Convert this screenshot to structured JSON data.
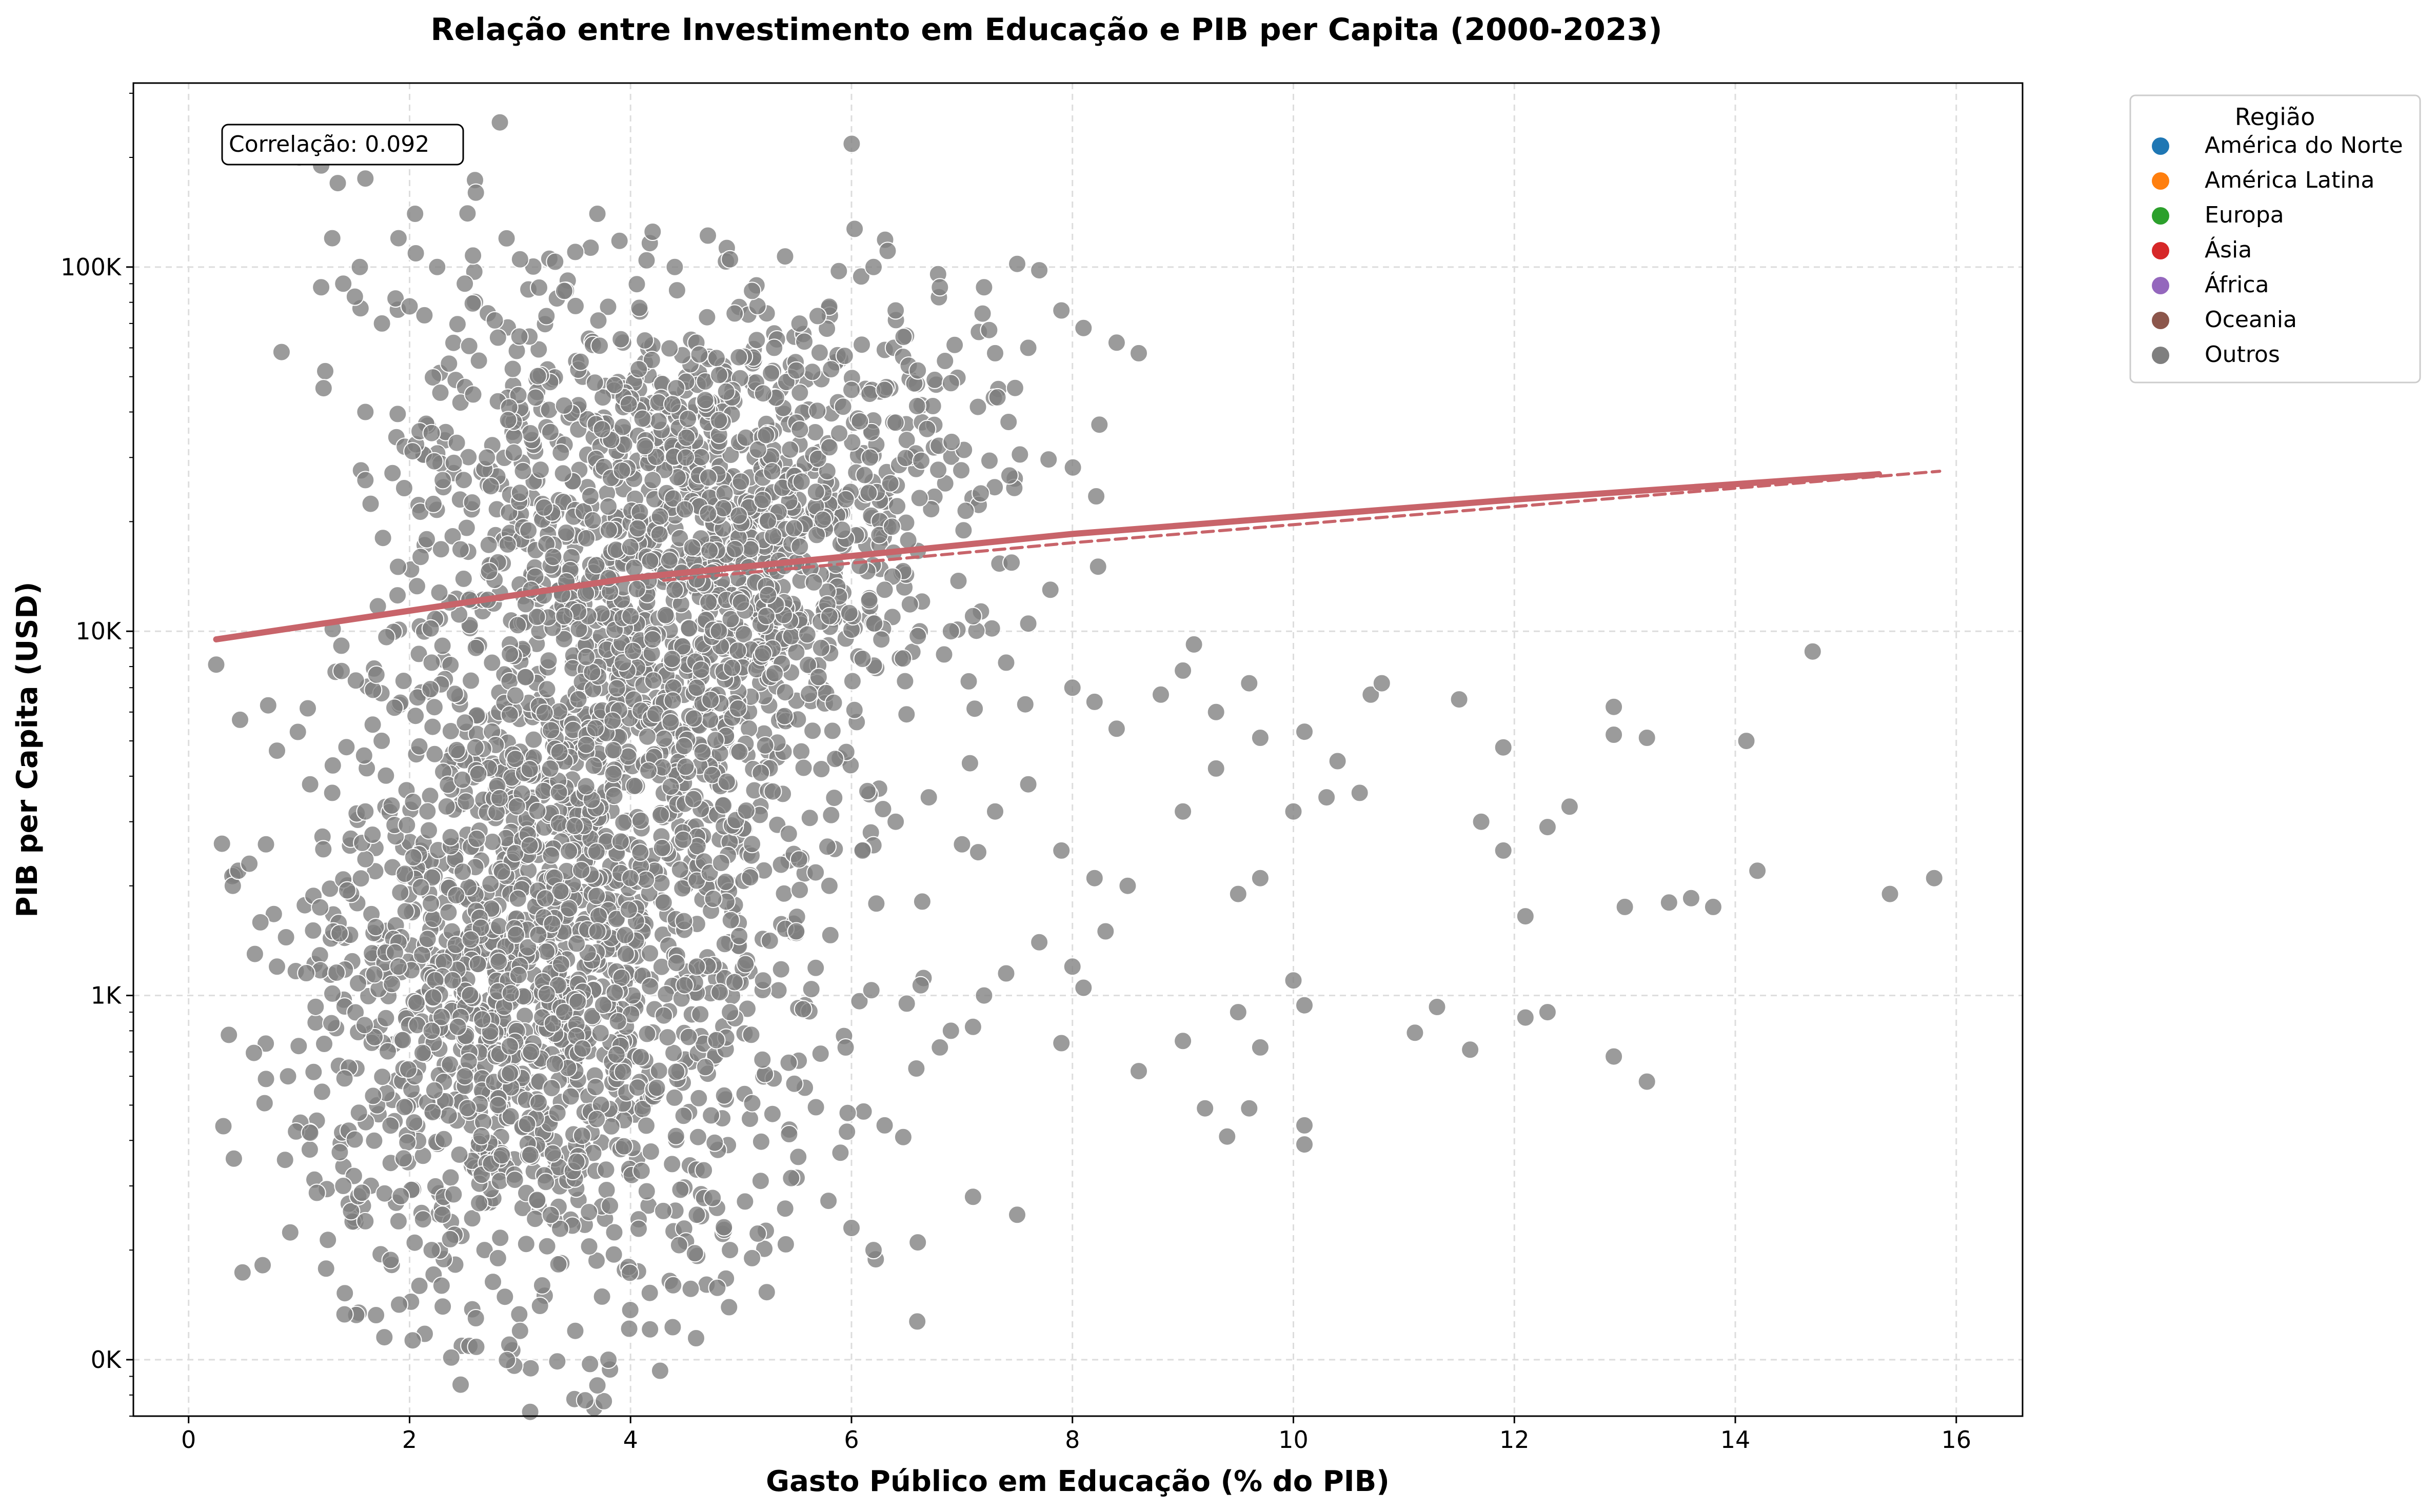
{
  "chart_data": {
    "type": "scatter",
    "title": "Relação entre Investimento em Educação e PIB per Capita (2000-2023)",
    "xlabel": "Gasto Público em Educação (% do PIB)",
    "ylabel": "PIB per Capita (USD)",
    "x_scale": "linear",
    "y_scale": "log",
    "xlim": [
      -0.5,
      16.6
    ],
    "ylim": [
      70,
      320000
    ],
    "x_ticks": [
      0,
      2,
      4,
      6,
      8,
      10,
      12,
      14,
      16
    ],
    "x_tick_labels": [
      "0",
      "2",
      "4",
      "6",
      "8",
      "10",
      "12",
      "14",
      "16"
    ],
    "y_ticks": [
      100,
      1000,
      10000,
      100000
    ],
    "y_tick_labels": [
      "0K",
      "1K",
      "10K",
      "100K"
    ],
    "grid": true,
    "legend_placement": "outside-top-right",
    "legend": {
      "title": "Região",
      "entries": [
        {
          "label": "América do Norte",
          "color": "#1f77b4"
        },
        {
          "label": "América Latina",
          "color": "#ff7f0e"
        },
        {
          "label": "Europa",
          "color": "#2ca02c"
        },
        {
          "label": "Ásia",
          "color": "#d62728"
        },
        {
          "label": "África",
          "color": "#9467bd"
        },
        {
          "label": "Oceania",
          "color": "#8c564b"
        },
        {
          "label": "Outros",
          "color": "#7f7f7f"
        }
      ]
    },
    "annotation": "Correlação: 0.092",
    "point_color": "#7f7f7f",
    "trend_color": "#c8646a",
    "series": [
      {
        "points": [
          [
            0.25,
            8100
          ],
          [
            0.8,
            4700
          ],
          [
            1.0,
            200000
          ],
          [
            1.2,
            190000
          ],
          [
            1.35,
            170000
          ],
          [
            1.6,
            175000
          ],
          [
            1.3,
            120000
          ],
          [
            1.4,
            90000
          ],
          [
            1.2,
            88000
          ],
          [
            1.55,
            100000
          ],
          [
            1.9,
            120000
          ],
          [
            2.05,
            140000
          ],
          [
            2.25,
            100000
          ],
          [
            2.6,
            160000
          ],
          [
            2.5,
            90000
          ],
          [
            1.75,
            70000
          ],
          [
            2.0,
            78000
          ],
          [
            1.6,
            40000
          ],
          [
            2.2,
            35000
          ],
          [
            2.4,
            29000
          ],
          [
            2.8,
            64000
          ],
          [
            3.0,
            105000
          ],
          [
            3.4,
            86000
          ],
          [
            3.5,
            110000
          ],
          [
            3.7,
            140000
          ],
          [
            3.9,
            118000
          ],
          [
            4.2,
            125000
          ],
          [
            4.4,
            100000
          ],
          [
            4.7,
            122000
          ],
          [
            4.9,
            105000
          ],
          [
            5.1,
            86000
          ],
          [
            5.3,
            60000
          ],
          [
            5.5,
            52000
          ],
          [
            6.2,
            100000
          ],
          [
            6.4,
            76000
          ],
          [
            6.8,
            88000
          ],
          [
            7.2,
            88000
          ],
          [
            7.5,
            102000
          ],
          [
            7.7,
            98000
          ],
          [
            7.9,
            76000
          ],
          [
            8.1,
            68000
          ],
          [
            8.4,
            62000
          ],
          [
            8.6,
            58000
          ],
          [
            7.6,
            60000
          ],
          [
            7.3,
            58000
          ],
          [
            6.9,
            48000
          ],
          [
            6.6,
            52000
          ],
          [
            6.3,
            46000
          ],
          [
            6.0,
            46000
          ],
          [
            5.8,
            32000
          ],
          [
            5.2,
            45000
          ],
          [
            4.8,
            38000
          ],
          [
            4.5,
            30000
          ],
          [
            4.2,
            26000
          ],
          [
            3.8,
            22000
          ],
          [
            3.6,
            18000
          ],
          [
            3.3,
            16000
          ],
          [
            3.0,
            24000
          ],
          [
            2.7,
            30000
          ],
          [
            2.3,
            26000
          ],
          [
            2.1,
            16000
          ],
          [
            1.6,
            26000
          ],
          [
            2.2,
            8200
          ],
          [
            1.7,
            7600
          ],
          [
            2.6,
            9000
          ],
          [
            3.1,
            13000
          ],
          [
            3.4,
            11000
          ],
          [
            3.6,
            8500
          ],
          [
            3.8,
            14000
          ],
          [
            4.0,
            11000
          ],
          [
            4.2,
            9500
          ],
          [
            4.4,
            13000
          ],
          [
            4.6,
            7000
          ],
          [
            4.8,
            10000
          ],
          [
            5.0,
            12000
          ],
          [
            5.2,
            8700
          ],
          [
            5.4,
            6800
          ],
          [
            5.6,
            9800
          ],
          [
            5.8,
            11000
          ],
          [
            6.1,
            8400
          ],
          [
            6.3,
            13000
          ],
          [
            6.6,
            9700
          ],
          [
            6.9,
            10000
          ],
          [
            7.1,
            11000
          ],
          [
            7.4,
            8200
          ],
          [
            7.6,
            10500
          ],
          [
            7.8,
            13000
          ],
          [
            8.0,
            7000
          ],
          [
            8.2,
            6400
          ],
          [
            8.4,
            5400
          ],
          [
            8.8,
            6700
          ],
          [
            9.0,
            7800
          ],
          [
            9.1,
            9200
          ],
          [
            9.3,
            6000
          ],
          [
            9.6,
            7200
          ],
          [
            9.7,
            5100
          ],
          [
            10.1,
            5300
          ],
          [
            10.4,
            4400
          ],
          [
            10.6,
            3600
          ],
          [
            10.7,
            6700
          ],
          [
            10.8,
            7200
          ],
          [
            11.5,
            6500
          ],
          [
            11.9,
            4800
          ],
          [
            11.7,
            3000
          ],
          [
            12.3,
            2900
          ],
          [
            12.5,
            3300
          ],
          [
            12.9,
            6200
          ],
          [
            12.9,
            5200
          ],
          [
            13.2,
            5100
          ],
          [
            14.1,
            5000
          ],
          [
            14.7,
            8800
          ],
          [
            13.4,
            1800
          ],
          [
            13.6,
            1850
          ],
          [
            13.0,
            1750
          ],
          [
            13.8,
            1750
          ],
          [
            14.2,
            2200
          ],
          [
            15.4,
            1900
          ],
          [
            15.8,
            2100
          ],
          [
            12.1,
            1650
          ],
          [
            11.9,
            2500
          ],
          [
            12.1,
            870
          ],
          [
            12.3,
            900
          ],
          [
            12.9,
            680
          ],
          [
            13.2,
            580
          ],
          [
            11.6,
            710
          ],
          [
            11.3,
            930
          ],
          [
            11.1,
            790
          ],
          [
            10.1,
            940
          ],
          [
            10.0,
            1100
          ],
          [
            10.1,
            440
          ],
          [
            10.1,
            390
          ],
          [
            9.6,
            490
          ],
          [
            9.4,
            410
          ],
          [
            9.2,
            490
          ],
          [
            9.7,
            720
          ],
          [
            9.5,
            900
          ],
          [
            9.0,
            750
          ],
          [
            8.6,
            620
          ],
          [
            8.1,
            1050
          ],
          [
            7.9,
            740
          ],
          [
            7.4,
            1150
          ],
          [
            7.1,
            820
          ],
          [
            6.8,
            720
          ],
          [
            6.5,
            950
          ],
          [
            6.3,
            440
          ],
          [
            5.9,
            370
          ],
          [
            6.0,
            230
          ],
          [
            6.2,
            200
          ],
          [
            6.6,
            210
          ],
          [
            7.1,
            280
          ],
          [
            7.5,
            250
          ],
          [
            5.4,
            260
          ],
          [
            5.1,
            190
          ],
          [
            4.9,
            200
          ],
          [
            4.6,
            250
          ],
          [
            4.1,
            330
          ],
          [
            3.8,
            100
          ],
          [
            3.7,
            85
          ],
          [
            3.5,
            120
          ],
          [
            3.2,
            160
          ],
          [
            3.0,
            120
          ],
          [
            2.8,
            190
          ],
          [
            2.6,
            130
          ],
          [
            2.3,
            140
          ],
          [
            2.2,
            200
          ],
          [
            1.9,
            240
          ],
          [
            1.6,
            240
          ],
          [
            1.4,
            300
          ],
          [
            1.1,
            420
          ],
          [
            0.9,
            600
          ],
          [
            0.7,
            590
          ],
          [
            0.6,
            1300
          ],
          [
            0.4,
            2000
          ],
          [
            0.45,
            2200
          ],
          [
            0.55,
            2300
          ],
          [
            0.7,
            2600
          ],
          [
            0.8,
            1200
          ],
          [
            1.1,
            3800
          ],
          [
            1.3,
            3600
          ],
          [
            1.6,
            3200
          ],
          [
            1.9,
            1200
          ],
          [
            2.2,
            800
          ],
          [
            2.5,
            600
          ],
          [
            2.8,
            500
          ],
          [
            3.1,
            700
          ],
          [
            3.4,
            900
          ],
          [
            3.7,
            1500
          ],
          [
            4.0,
            2100
          ],
          [
            4.3,
            1800
          ],
          [
            4.6,
            1200
          ],
          [
            4.9,
            900
          ],
          [
            5.2,
            1100
          ],
          [
            5.5,
            1500
          ],
          [
            5.8,
            2000
          ],
          [
            6.1,
            2500
          ],
          [
            6.4,
            3000
          ],
          [
            6.7,
            3500
          ],
          [
            7.0,
            2600
          ],
          [
            7.3,
            3200
          ],
          [
            7.6,
            3800
          ],
          [
            7.9,
            2500
          ],
          [
            8.2,
            2100
          ],
          [
            8.5,
            2000
          ],
          [
            8.3,
            1500
          ],
          [
            8.0,
            1200
          ],
          [
            7.7,
            1400
          ],
          [
            7.2,
            1000
          ],
          [
            6.9,
            800
          ],
          [
            9.0,
            3200
          ],
          [
            9.3,
            4200
          ],
          [
            9.5,
            1900
          ],
          [
            9.7,
            2100
          ],
          [
            10.0,
            3200
          ],
          [
            10.3,
            3500
          ]
        ]
      }
    ],
    "trend_lines": [
      {
        "style": "solid",
        "x": [
          0.25,
          4.0,
          8.0,
          12.0,
          15.3
        ],
        "y": [
          9500,
          14000,
          18500,
          23000,
          27000
        ]
      },
      {
        "style": "dashed",
        "x": [
          4.3,
          8.0,
          12.0,
          15.85
        ],
        "y": [
          13800,
          17500,
          22000,
          27500
        ]
      }
    ]
  }
}
